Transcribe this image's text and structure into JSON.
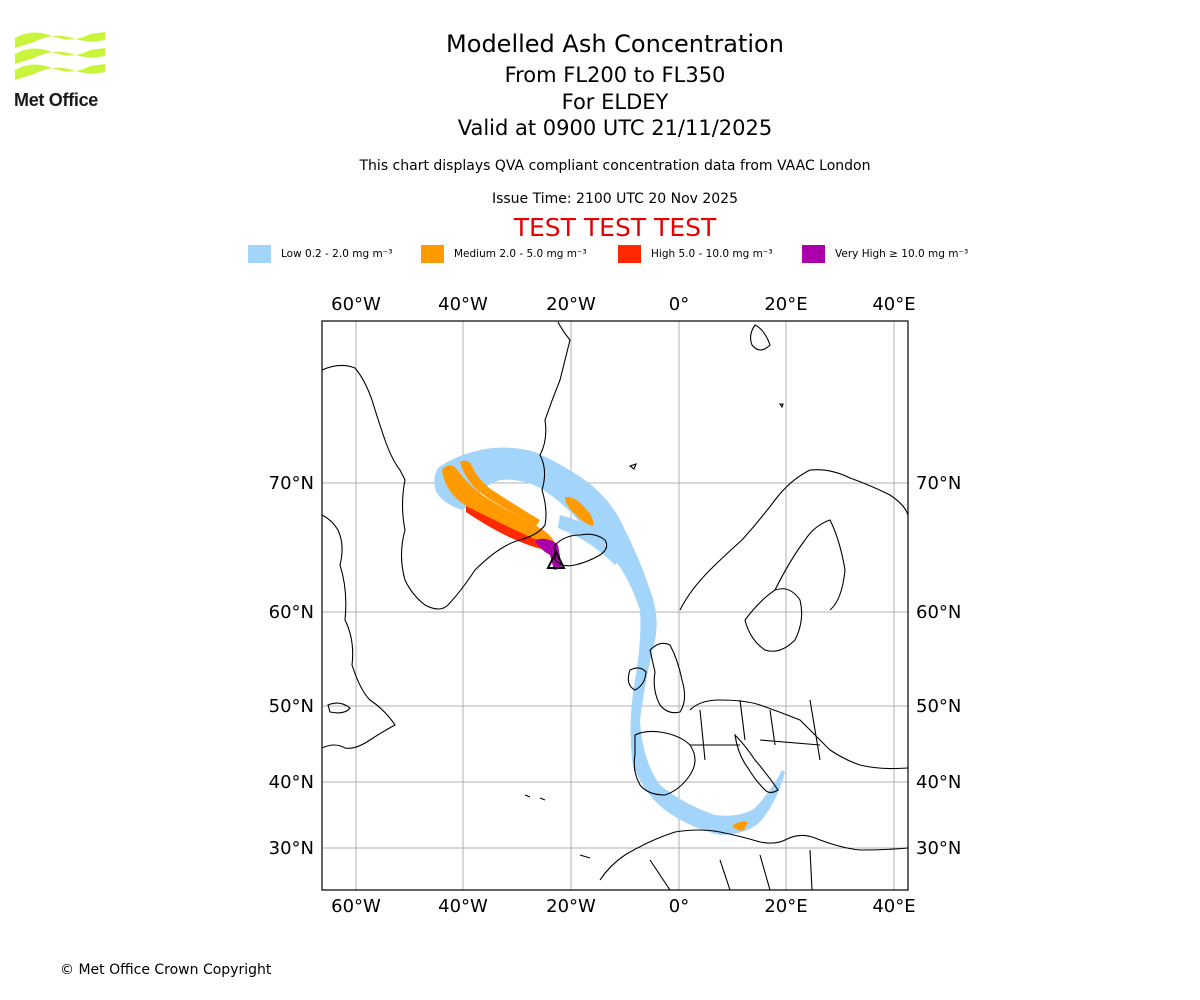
{
  "logo": {
    "text": "Met Office"
  },
  "header": {
    "title": "Modelled Ash Concentration",
    "levels": "From FL200 to FL350",
    "target": "For ELDEY",
    "valid": "Valid at 0900 UTC 21/11/2025",
    "description": "This chart displays QVA compliant concentration data from VAAC London",
    "issue_time": "Issue Time: 2100 UTC 20 Nov 2025",
    "test_banner": "TEST TEST TEST"
  },
  "legend": [
    {
      "label": "Low 0.2 - 2.0 mg m⁻³",
      "color": "#a3d4fa"
    },
    {
      "label": "Medium 2.0 - 5.0 mg m⁻³",
      "color": "#ff9b00"
    },
    {
      "label": "High 5.0 - 10.0 mg m⁻³",
      "color": "#ff2800"
    },
    {
      "label": "Very High ≥ 10.0 mg m⁻³",
      "color": "#aa00aa"
    }
  ],
  "map": {
    "lon_ticks": [
      "60°W",
      "40°W",
      "20°W",
      "0°",
      "20°E",
      "40°E"
    ],
    "lat_ticks": [
      "70°N",
      "60°N",
      "50°N",
      "40°N",
      "30°N"
    ],
    "grid": true,
    "volcano_marker": "triangle"
  },
  "footer": {
    "copyright": "© Met Office Crown Copyright"
  }
}
